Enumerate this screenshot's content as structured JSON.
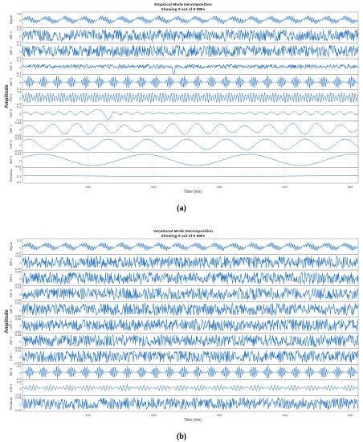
{
  "chart_data": [
    {
      "type": "line",
      "panel_caption": "(a)",
      "title": "Empirical Mode Decomposition",
      "subtitle": "Showing 9 out of 9 IMFs",
      "ylabel": "Amplitude",
      "xlabel": "Time (ms)",
      "xlim": [
        0,
        512
      ],
      "xticks": [
        "100",
        "200",
        "300",
        "400",
        "500"
      ],
      "color": "#1f6fbf",
      "rows": [
        {
          "name": "Signal",
          "ticks": [
            "0.5",
            "0",
            "-0.5"
          ],
          "ylim": [
            -0.7,
            0.7
          ],
          "waveform": "signal"
        },
        {
          "name": "IMF 1",
          "ticks": [
            "0.2",
            "0",
            "-0.2"
          ],
          "ylim": [
            -0.25,
            0.25
          ],
          "waveform": "dense"
        },
        {
          "name": "IMF 2",
          "ticks": [
            "0.1",
            "0",
            "-0.1"
          ],
          "ylim": [
            -0.15,
            0.15
          ],
          "waveform": "dense"
        },
        {
          "name": "IMF 3",
          "ticks": [
            "0.1",
            "0",
            "-0.1"
          ],
          "ylim": [
            -0.2,
            0.2
          ],
          "waveform": "medium-burst"
        },
        {
          "name": "IMF 4",
          "ticks": [
            "0.1",
            "0",
            "-0.1"
          ],
          "ylim": [
            -0.15,
            0.15
          ],
          "waveform": "bursts"
        },
        {
          "name": "IMF 5",
          "ticks": [
            "0.5",
            "0",
            "-0.5"
          ],
          "ylim": [
            -0.6,
            0.6
          ],
          "waveform": "modulated"
        },
        {
          "name": "IMF 6",
          "ticks": [
            "0.1",
            "0",
            "-0.1"
          ],
          "ylim": [
            -0.15,
            0.15
          ],
          "waveform": "wobble"
        },
        {
          "name": "IMF 7",
          "ticks": [
            "0.05",
            "0",
            "-0.05"
          ],
          "ylim": [
            -0.07,
            0.07
          ],
          "waveform": "sine-14"
        },
        {
          "name": "IMF 8",
          "ticks": [
            "0.05",
            "0",
            "-0.05"
          ],
          "ylim": [
            -0.07,
            0.07
          ],
          "waveform": "sine-8"
        },
        {
          "name": "IMF 9",
          "ticks": [
            "0.02",
            "0",
            "-0.02"
          ],
          "ylim": [
            -0.03,
            0.03
          ],
          "waveform": "sine-3"
        },
        {
          "name": "Residual",
          "ticks": [
            "0",
            "-0.1",
            "-0.2"
          ],
          "ylim": [
            -0.22,
            0.02
          ],
          "waveform": "residual"
        }
      ]
    },
    {
      "type": "line",
      "panel_caption": "(b)",
      "title": "Variational Mode Decomposition",
      "subtitle": "Showing 9 out of 9 IMFs",
      "ylabel": "Amplitude",
      "xlabel": "Time (ms)",
      "xlim": [
        0,
        512
      ],
      "xticks": [
        "100",
        "200",
        "300",
        "400",
        "500"
      ],
      "color": "#1f6fbf",
      "rows": [
        {
          "name": "Signal",
          "ticks": [
            "0.5",
            "0",
            "-0.5"
          ],
          "ylim": [
            -0.7,
            0.7
          ],
          "waveform": "signal"
        },
        {
          "name": "IMF 1",
          "ticks": [
            "0.05",
            "0",
            "-0.05"
          ],
          "ylim": [
            -0.07,
            0.07
          ],
          "waveform": "dense"
        },
        {
          "name": "IMF 2",
          "ticks": [
            "0.05",
            "0",
            "-0.05"
          ],
          "ylim": [
            -0.07,
            0.07
          ],
          "waveform": "dense"
        },
        {
          "name": "IMF 3",
          "ticks": [
            "0.05",
            "0",
            "-0.05"
          ],
          "ylim": [
            -0.07,
            0.07
          ],
          "waveform": "dense"
        },
        {
          "name": "IMF 4",
          "ticks": [
            "0.05",
            "0",
            "-0.05"
          ],
          "ylim": [
            -0.07,
            0.07
          ],
          "waveform": "dense"
        },
        {
          "name": "IMF 5",
          "ticks": [
            "0.05",
            "0",
            "-0.05"
          ],
          "ylim": [
            -0.07,
            0.07
          ],
          "waveform": "dense"
        },
        {
          "name": "IMF 6",
          "ticks": [
            "0.05",
            "0",
            "-0.05"
          ],
          "ylim": [
            -0.07,
            0.07
          ],
          "waveform": "dense"
        },
        {
          "name": "IMF 7",
          "ticks": [
            "0.05",
            "0",
            "-0.05"
          ],
          "ylim": [
            -0.07,
            0.07
          ],
          "waveform": "dense"
        },
        {
          "name": "IMF 8",
          "ticks": [
            "0.5",
            "0",
            "-0.5"
          ],
          "ylim": [
            -0.6,
            0.6
          ],
          "waveform": "bursts"
        },
        {
          "name": "IMF 9",
          "ticks": [
            "0.5",
            "0",
            "-0.5"
          ],
          "ylim": [
            -0.6,
            0.6
          ],
          "waveform": "signal-light"
        },
        {
          "name": "Residual",
          "ticks": [
            "0.05",
            "0",
            "-0.05"
          ],
          "ylim": [
            -0.07,
            0.07
          ],
          "waveform": "dense"
        }
      ]
    }
  ]
}
